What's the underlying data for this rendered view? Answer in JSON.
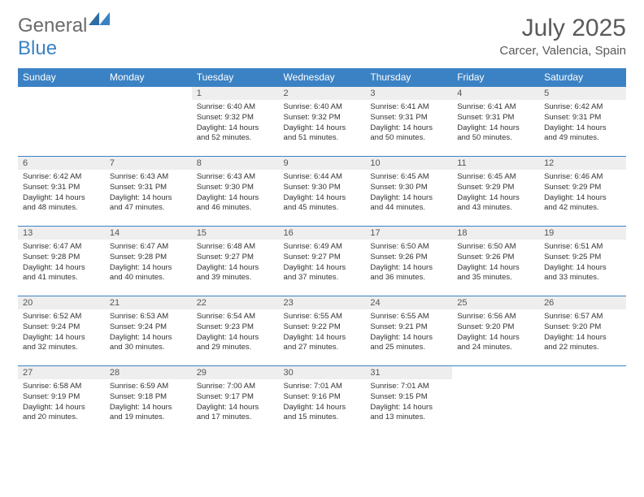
{
  "logo": {
    "text1": "General",
    "text2": "Blue"
  },
  "title": "July 2025",
  "location": "Carcer, Valencia, Spain",
  "colors": {
    "header_bg": "#3b82c4",
    "header_text": "#ffffff",
    "daynum_bg": "#eeeeee",
    "border": "#3b82c4",
    "logo_gray": "#6b6b6b",
    "logo_blue": "#3b82c4"
  },
  "day_headers": [
    "Sunday",
    "Monday",
    "Tuesday",
    "Wednesday",
    "Thursday",
    "Friday",
    "Saturday"
  ],
  "weeks": [
    [
      null,
      null,
      {
        "n": "1",
        "sr": "6:40 AM",
        "ss": "9:32 PM",
        "dl": "14 hours and 52 minutes."
      },
      {
        "n": "2",
        "sr": "6:40 AM",
        "ss": "9:32 PM",
        "dl": "14 hours and 51 minutes."
      },
      {
        "n": "3",
        "sr": "6:41 AM",
        "ss": "9:31 PM",
        "dl": "14 hours and 50 minutes."
      },
      {
        "n": "4",
        "sr": "6:41 AM",
        "ss": "9:31 PM",
        "dl": "14 hours and 50 minutes."
      },
      {
        "n": "5",
        "sr": "6:42 AM",
        "ss": "9:31 PM",
        "dl": "14 hours and 49 minutes."
      }
    ],
    [
      {
        "n": "6",
        "sr": "6:42 AM",
        "ss": "9:31 PM",
        "dl": "14 hours and 48 minutes."
      },
      {
        "n": "7",
        "sr": "6:43 AM",
        "ss": "9:31 PM",
        "dl": "14 hours and 47 minutes."
      },
      {
        "n": "8",
        "sr": "6:43 AM",
        "ss": "9:30 PM",
        "dl": "14 hours and 46 minutes."
      },
      {
        "n": "9",
        "sr": "6:44 AM",
        "ss": "9:30 PM",
        "dl": "14 hours and 45 minutes."
      },
      {
        "n": "10",
        "sr": "6:45 AM",
        "ss": "9:30 PM",
        "dl": "14 hours and 44 minutes."
      },
      {
        "n": "11",
        "sr": "6:45 AM",
        "ss": "9:29 PM",
        "dl": "14 hours and 43 minutes."
      },
      {
        "n": "12",
        "sr": "6:46 AM",
        "ss": "9:29 PM",
        "dl": "14 hours and 42 minutes."
      }
    ],
    [
      {
        "n": "13",
        "sr": "6:47 AM",
        "ss": "9:28 PM",
        "dl": "14 hours and 41 minutes."
      },
      {
        "n": "14",
        "sr": "6:47 AM",
        "ss": "9:28 PM",
        "dl": "14 hours and 40 minutes."
      },
      {
        "n": "15",
        "sr": "6:48 AM",
        "ss": "9:27 PM",
        "dl": "14 hours and 39 minutes."
      },
      {
        "n": "16",
        "sr": "6:49 AM",
        "ss": "9:27 PM",
        "dl": "14 hours and 37 minutes."
      },
      {
        "n": "17",
        "sr": "6:50 AM",
        "ss": "9:26 PM",
        "dl": "14 hours and 36 minutes."
      },
      {
        "n": "18",
        "sr": "6:50 AM",
        "ss": "9:26 PM",
        "dl": "14 hours and 35 minutes."
      },
      {
        "n": "19",
        "sr": "6:51 AM",
        "ss": "9:25 PM",
        "dl": "14 hours and 33 minutes."
      }
    ],
    [
      {
        "n": "20",
        "sr": "6:52 AM",
        "ss": "9:24 PM",
        "dl": "14 hours and 32 minutes."
      },
      {
        "n": "21",
        "sr": "6:53 AM",
        "ss": "9:24 PM",
        "dl": "14 hours and 30 minutes."
      },
      {
        "n": "22",
        "sr": "6:54 AM",
        "ss": "9:23 PM",
        "dl": "14 hours and 29 minutes."
      },
      {
        "n": "23",
        "sr": "6:55 AM",
        "ss": "9:22 PM",
        "dl": "14 hours and 27 minutes."
      },
      {
        "n": "24",
        "sr": "6:55 AM",
        "ss": "9:21 PM",
        "dl": "14 hours and 25 minutes."
      },
      {
        "n": "25",
        "sr": "6:56 AM",
        "ss": "9:20 PM",
        "dl": "14 hours and 24 minutes."
      },
      {
        "n": "26",
        "sr": "6:57 AM",
        "ss": "9:20 PM",
        "dl": "14 hours and 22 minutes."
      }
    ],
    [
      {
        "n": "27",
        "sr": "6:58 AM",
        "ss": "9:19 PM",
        "dl": "14 hours and 20 minutes."
      },
      {
        "n": "28",
        "sr": "6:59 AM",
        "ss": "9:18 PM",
        "dl": "14 hours and 19 minutes."
      },
      {
        "n": "29",
        "sr": "7:00 AM",
        "ss": "9:17 PM",
        "dl": "14 hours and 17 minutes."
      },
      {
        "n": "30",
        "sr": "7:01 AM",
        "ss": "9:16 PM",
        "dl": "14 hours and 15 minutes."
      },
      {
        "n": "31",
        "sr": "7:01 AM",
        "ss": "9:15 PM",
        "dl": "14 hours and 13 minutes."
      },
      null,
      null
    ]
  ],
  "labels": {
    "sunrise": "Sunrise:",
    "sunset": "Sunset:",
    "daylight": "Daylight:"
  }
}
